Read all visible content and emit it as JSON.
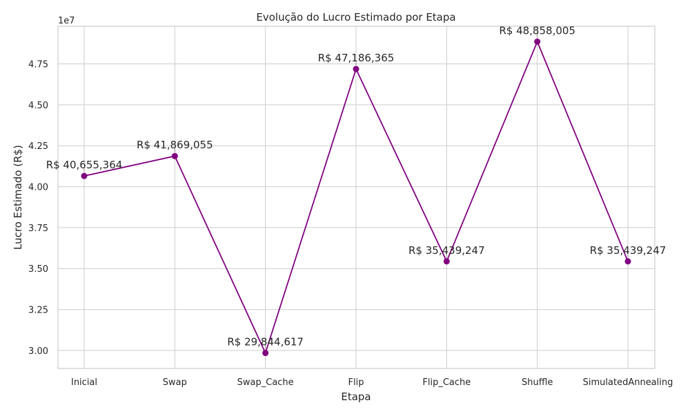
{
  "chart_data": {
    "type": "line",
    "title": "Evolução do Lucro Estimado por Etapa",
    "xlabel": "Etapa",
    "ylabel": "Lucro Estimado (R$)",
    "y_offset_label": "1e7",
    "categories": [
      "Inicial",
      "Swap",
      "Swap_Cache",
      "Flip",
      "Flip_Cache",
      "Shuffle",
      "SimulatedAnnealing"
    ],
    "series": [
      {
        "values": [
          40655364,
          41869055,
          29844617,
          47186365,
          35439247,
          48858005,
          35439247
        ]
      }
    ],
    "data_labels": [
      "R$ 40,655,364",
      "R$ 41,869,055",
      "R$ 29,844,617",
      "R$ 47,186,365",
      "R$ 35,439,247",
      "R$ 48,858,005",
      "R$ 35,439,247"
    ],
    "yticks": [
      30000000,
      32500000,
      35000000,
      37500000,
      40000000,
      42500000,
      45000000,
      47500000
    ],
    "ytick_labels": [
      "3.00",
      "3.25",
      "3.50",
      "3.75",
      "4.00",
      "4.25",
      "4.50",
      "4.75"
    ],
    "ylim": [
      28900000,
      49800000
    ],
    "grid": true,
    "line_color": "#800080",
    "marker_color": "#800080"
  }
}
